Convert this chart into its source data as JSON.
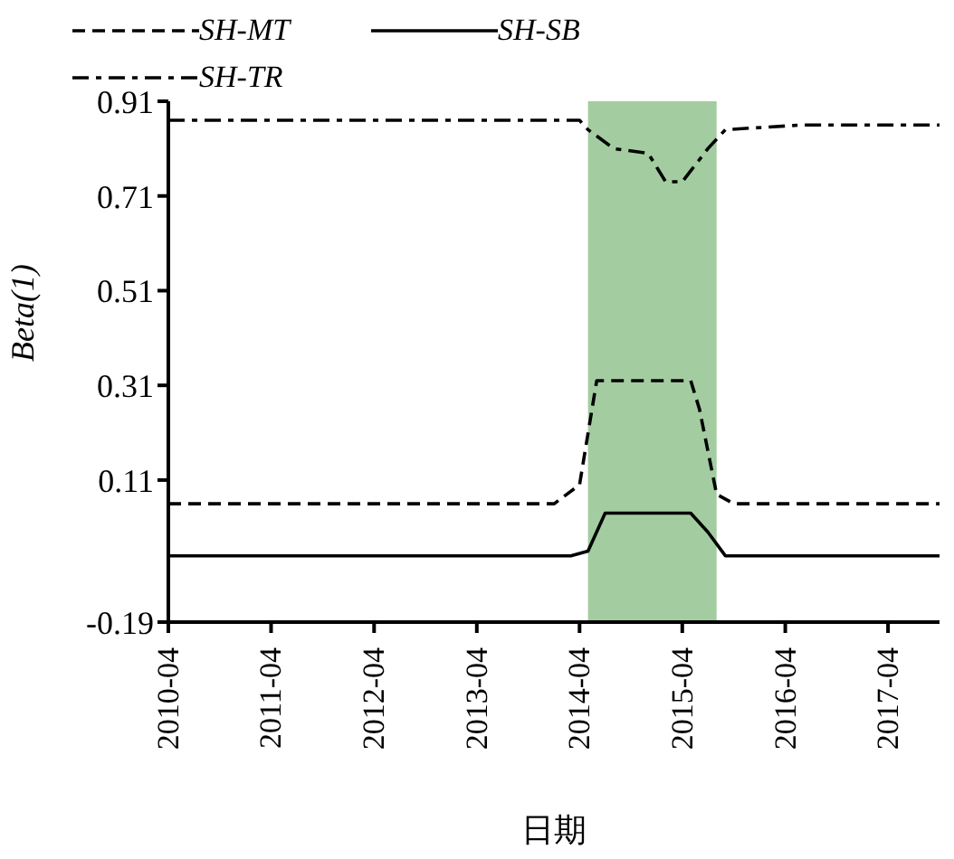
{
  "chart_data": {
    "type": "line",
    "xlabel": "日期",
    "ylabel": "Beta(1)",
    "xlim": [
      "2010-04",
      "2017-10"
    ],
    "xticks": [
      "2010-04",
      "2011-04",
      "2012-04",
      "2013-04",
      "2014-04",
      "2015-04",
      "2016-04",
      "2017-04"
    ],
    "ylim": [
      -0.19,
      0.91
    ],
    "yticks": [
      -0.19,
      0.11,
      0.31,
      0.51,
      0.71,
      0.91
    ],
    "legend": "top",
    "bands": [
      {
        "axis": "x",
        "from": "2014-05",
        "to": "2015-08",
        "color": "#a3cda0"
      }
    ],
    "series": [
      {
        "name": "SH-MT",
        "color": "#000000",
        "line_style": "dashed",
        "x": [
          "2010-04",
          "2012-04",
          "2014-01",
          "2014-04",
          "2014-06",
          "2014-09",
          "2015-05",
          "2015-06",
          "2015-08",
          "2015-10",
          "2016-06",
          "2017-10"
        ],
        "values": [
          0.06,
          0.06,
          0.06,
          0.1,
          0.32,
          0.32,
          0.32,
          0.26,
          0.08,
          0.06,
          0.06,
          0.06
        ]
      },
      {
        "name": "SH-SB",
        "color": "#000000",
        "line_style": "solid",
        "x": [
          "2010-04",
          "2012-04",
          "2014-03",
          "2014-05",
          "2014-07",
          "2015-05",
          "2015-07",
          "2015-09",
          "2016-06",
          "2017-10"
        ],
        "values": [
          -0.05,
          -0.05,
          -0.05,
          -0.04,
          0.04,
          0.04,
          0.0,
          -0.05,
          -0.05,
          -0.05
        ]
      },
      {
        "name": "SH-TR",
        "color": "#000000",
        "line_style": "dashdot",
        "x": [
          "2010-04",
          "2014-04",
          "2014-05",
          "2014-08",
          "2014-12",
          "2015-02",
          "2015-04",
          "2015-07",
          "2015-09",
          "2016-06",
          "2017-10"
        ],
        "values": [
          0.87,
          0.87,
          0.85,
          0.81,
          0.8,
          0.74,
          0.74,
          0.81,
          0.85,
          0.86,
          0.86
        ]
      }
    ]
  }
}
